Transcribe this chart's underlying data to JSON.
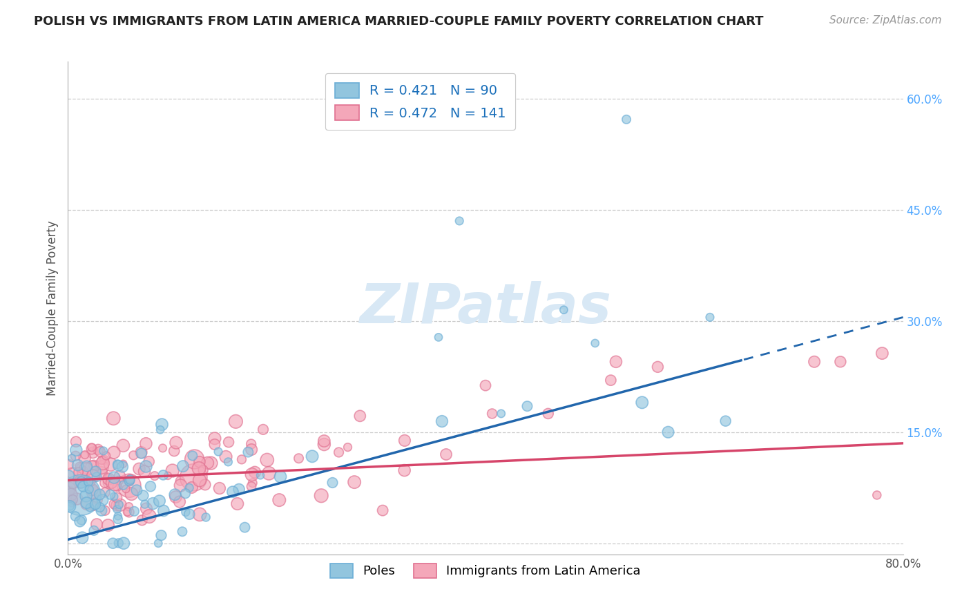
{
  "title": "POLISH VS IMMIGRANTS FROM LATIN AMERICA MARRIED-COUPLE FAMILY POVERTY CORRELATION CHART",
  "source": "Source: ZipAtlas.com",
  "ylabel": "Married-Couple Family Poverty",
  "blue_R": 0.421,
  "blue_N": 90,
  "pink_R": 0.472,
  "pink_N": 141,
  "blue_color": "#92c5de",
  "pink_color": "#f4a7b9",
  "blue_edge_color": "#6baed6",
  "pink_edge_color": "#e07090",
  "blue_line_color": "#2166ac",
  "pink_line_color": "#d6456a",
  "watermark_color": "#d8e8f5",
  "background_color": "#ffffff",
  "grid_color": "#cccccc",
  "xmin": 0.0,
  "xmax": 0.8,
  "ymin": -0.015,
  "ymax": 0.65,
  "legend_R_label": "R = ",
  "legend_N_label": "N = "
}
